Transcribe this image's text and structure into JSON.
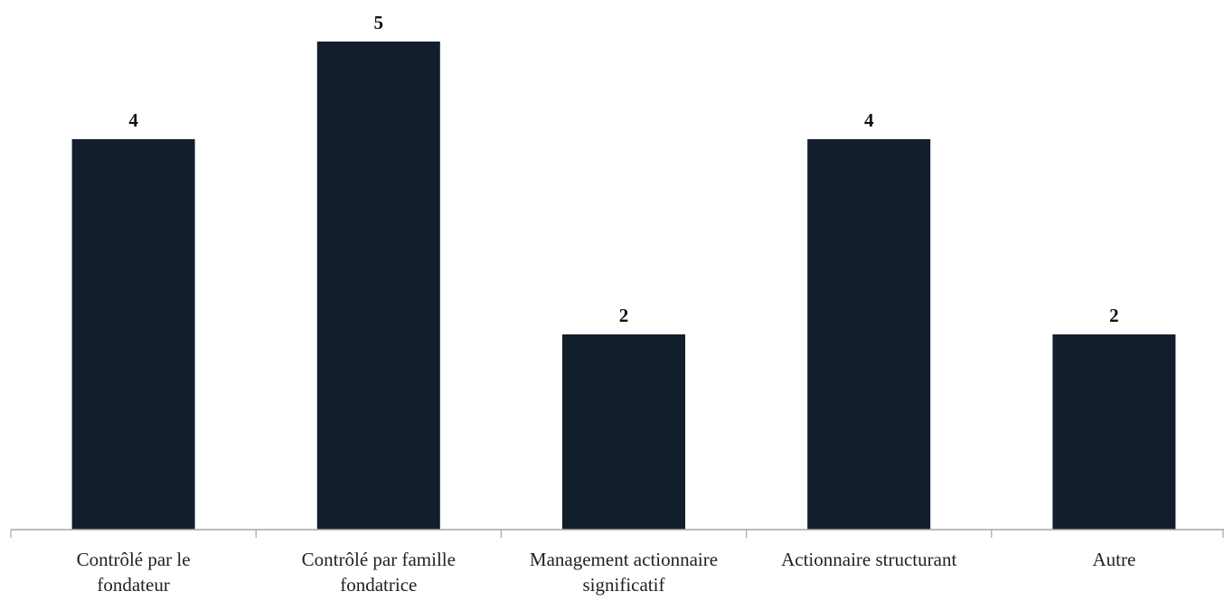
{
  "chart_data": {
    "type": "bar",
    "categories": [
      [
        "Contrôlé par le",
        "fondateur"
      ],
      [
        "Contrôlé par famille",
        "fondatrice"
      ],
      [
        "Management actionnaire",
        "significatif"
      ],
      [
        "Actionnaire structurant"
      ],
      [
        "Autre"
      ]
    ],
    "values": [
      4,
      5,
      2,
      4,
      2
    ],
    "data_labels": [
      "4",
      "5",
      "2",
      "4",
      "2"
    ],
    "ylim": [
      0,
      5
    ],
    "grid": false,
    "legend": "none",
    "bar_color": "#131e2c",
    "axis_color": "#a6a6a6"
  }
}
